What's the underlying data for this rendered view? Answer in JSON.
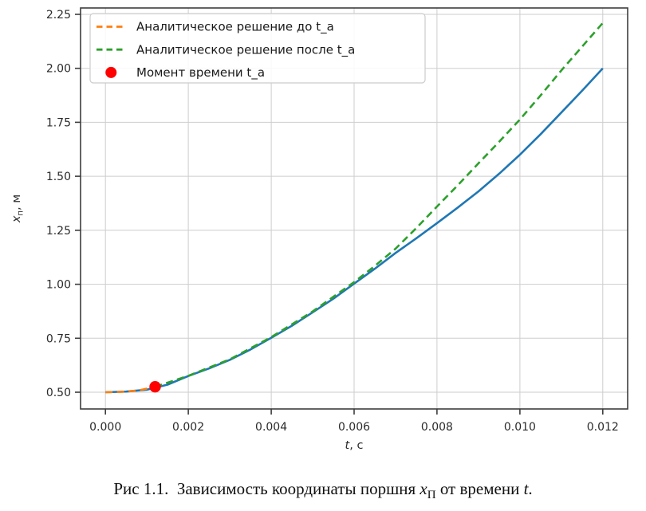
{
  "figure": {
    "caption": {
      "prefix": "Рис 1.1.  Зависимость координаты поршня ",
      "x_var": "x",
      "x_sub": "П",
      "middle": " от времени ",
      "t_var": "t",
      "suffix": "."
    }
  },
  "chart_data": {
    "type": "line",
    "title": "",
    "xlabel": {
      "var": "t",
      "unit": ", с"
    },
    "ylabel": {
      "var": "x",
      "sub": "п",
      "unit": ", м"
    },
    "xlim": [
      -0.0006,
      0.0126
    ],
    "ylim": [
      0.4225,
      2.2795
    ],
    "grid": true,
    "x_ticks": [
      0.0,
      0.002,
      0.004,
      0.006,
      0.008,
      0.01,
      0.012
    ],
    "x_tick_labels": [
      "0.000",
      "0.002",
      "0.004",
      "0.006",
      "0.008",
      "0.010",
      "0.012"
    ],
    "y_ticks": [
      0.5,
      0.75,
      1.0,
      1.25,
      1.5,
      1.75,
      2.0,
      2.25
    ],
    "y_tick_labels": [
      "0.50",
      "0.75",
      "1.00",
      "1.25",
      "1.50",
      "1.75",
      "2.00",
      "2.25"
    ],
    "legend_position": "upper left",
    "colors": {
      "main": "#1f77b4",
      "analytic_before": "#ff7f0e",
      "analytic_after": "#2ca02c",
      "moment_marker": "#ff0000",
      "grid": "#cdcdcd",
      "spine": "#3d3d3d",
      "text": "#2b2b2b",
      "legend_border": "#cccccc"
    },
    "series": [
      {
        "id": "main",
        "label": "",
        "color": "#1f77b4",
        "style": "solid",
        "x": [
          0,
          0.0005,
          0.001,
          0.0015,
          0.002,
          0.0025,
          0.003,
          0.0035,
          0.004,
          0.0045,
          0.005,
          0.0055,
          0.006,
          0.0065,
          0.007,
          0.0075,
          0.008,
          0.0085,
          0.009,
          0.0095,
          0.01,
          0.0105,
          0.011,
          0.0115,
          0.012
        ],
        "y": [
          0.5,
          0.503,
          0.512,
          0.535,
          0.575,
          0.61,
          0.65,
          0.698,
          0.752,
          0.808,
          0.87,
          0.933,
          1.003,
          1.072,
          1.145,
          1.213,
          1.283,
          1.355,
          1.43,
          1.512,
          1.6,
          1.695,
          1.795,
          1.896,
          2.0
        ]
      },
      {
        "id": "analytic_before",
        "label": "Аналитическое решение до t_a",
        "color": "#ff7f0e",
        "style": "dashed",
        "x": [
          0,
          0.0004,
          0.0008,
          0.0012
        ],
        "y": [
          0.5,
          0.502,
          0.508,
          0.525
        ]
      },
      {
        "id": "analytic_after",
        "label": "Аналитическое решение после t_a",
        "color": "#2ca02c",
        "style": "dashed",
        "x": [
          0.0012,
          0.002,
          0.003,
          0.004,
          0.005,
          0.006,
          0.0065,
          0.007,
          0.0075,
          0.008,
          0.0085,
          0.009,
          0.0095,
          0.01,
          0.0105,
          0.011,
          0.0115,
          0.012
        ],
        "y": [
          0.525,
          0.576,
          0.652,
          0.755,
          0.874,
          1.01,
          1.085,
          1.165,
          1.26,
          1.36,
          1.458,
          1.56,
          1.66,
          1.763,
          1.875,
          1.99,
          2.1,
          2.21
        ]
      },
      {
        "id": "t_a_point",
        "label": "Момент времени t_a",
        "color": "#ff0000",
        "style": "marker",
        "x": [
          0.0012
        ],
        "y": [
          0.525
        ]
      }
    ]
  }
}
